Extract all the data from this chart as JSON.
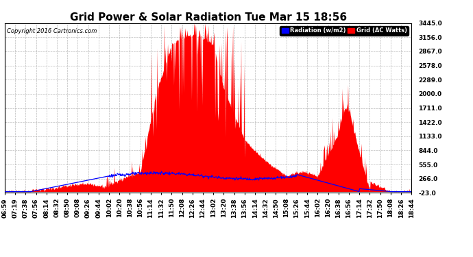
{
  "title": "Grid Power & Solar Radiation Tue Mar 15 18:56",
  "copyright": "Copyright 2016 Cartronics.com",
  "legend_radiation": "Radiation (w/m2)",
  "legend_grid": "Grid (AC Watts)",
  "legend_radiation_bg": "#0000FF",
  "legend_grid_bg": "#FF0000",
  "yticks": [
    -23.0,
    266.0,
    555.0,
    844.0,
    1133.0,
    1422.0,
    1711.0,
    2000.0,
    2289.0,
    2578.0,
    2867.0,
    3156.0,
    3445.0
  ],
  "ymin": -23.0,
  "ymax": 3445.0,
  "xtick_labels": [
    "06:59",
    "07:19",
    "07:38",
    "07:56",
    "08:14",
    "08:32",
    "08:50",
    "09:08",
    "09:26",
    "09:44",
    "10:02",
    "10:20",
    "10:38",
    "10:56",
    "11:14",
    "11:32",
    "11:50",
    "12:08",
    "12:26",
    "12:44",
    "13:02",
    "13:20",
    "13:38",
    "13:56",
    "14:14",
    "14:32",
    "14:50",
    "15:08",
    "15:26",
    "15:44",
    "16:02",
    "16:20",
    "16:38",
    "16:56",
    "17:14",
    "17:32",
    "17:50",
    "18:08",
    "18:26",
    "18:44"
  ],
  "grid_color": "#aaaaaa",
  "bg_color": "#ffffff",
  "plot_bg": "#ffffff",
  "red_color": "#FF0000",
  "blue_color": "#0000FF",
  "title_fontsize": 11,
  "tick_fontsize": 6.5
}
